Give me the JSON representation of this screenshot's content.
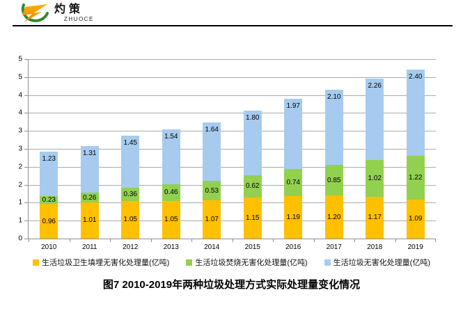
{
  "header": {
    "brand_cn": "灼策",
    "brand_en": "ZHUOCE",
    "logo_colors": {
      "z_top": "#F9B000",
      "z_bottom": "#F08300",
      "arc": "#2E8B2E"
    }
  },
  "chart_data": {
    "type": "bar",
    "stacked": true,
    "title": "图7  2010-2019年两种垃圾处理方式实际处理量变化情况",
    "categories": [
      "2010",
      "2011",
      "2012",
      "2013",
      "2014",
      "2015",
      "2016",
      "2017",
      "2018",
      "2019"
    ],
    "series": [
      {
        "name": "生活垃圾卫生填埋无害化处理量(亿吨)",
        "color": "#FFC000",
        "label_position": "center",
        "values": [
          0.96,
          1.01,
          1.05,
          1.05,
          1.07,
          1.15,
          1.19,
          1.2,
          1.17,
          1.09
        ]
      },
      {
        "name": "生活垃圾焚烧无害化处理量(亿吨)",
        "color": "#92D050",
        "label_position": "center",
        "values": [
          0.23,
          0.26,
          0.36,
          0.46,
          0.53,
          0.62,
          0.74,
          0.85,
          1.02,
          1.22
        ]
      },
      {
        "name": "生活垃圾无害化处理量(亿吨)",
        "color": "#A6CBEF",
        "label_position": "inside_end",
        "values": [
          1.23,
          1.31,
          1.45,
          1.54,
          1.64,
          1.8,
          1.97,
          2.1,
          2.26,
          2.4
        ]
      }
    ],
    "ylim": [
      0,
      5
    ],
    "ytick_step": 0.5,
    "ytick_labels_bottom_up": [
      "0",
      "1",
      "1",
      "2",
      "2",
      "3",
      "3",
      "4",
      "4",
      "5",
      "5"
    ],
    "grid": true,
    "grid_color": "#a9a9a9",
    "axis_color": "#8f8f8f",
    "legend_position": "bottom",
    "value_decimals": 2
  }
}
